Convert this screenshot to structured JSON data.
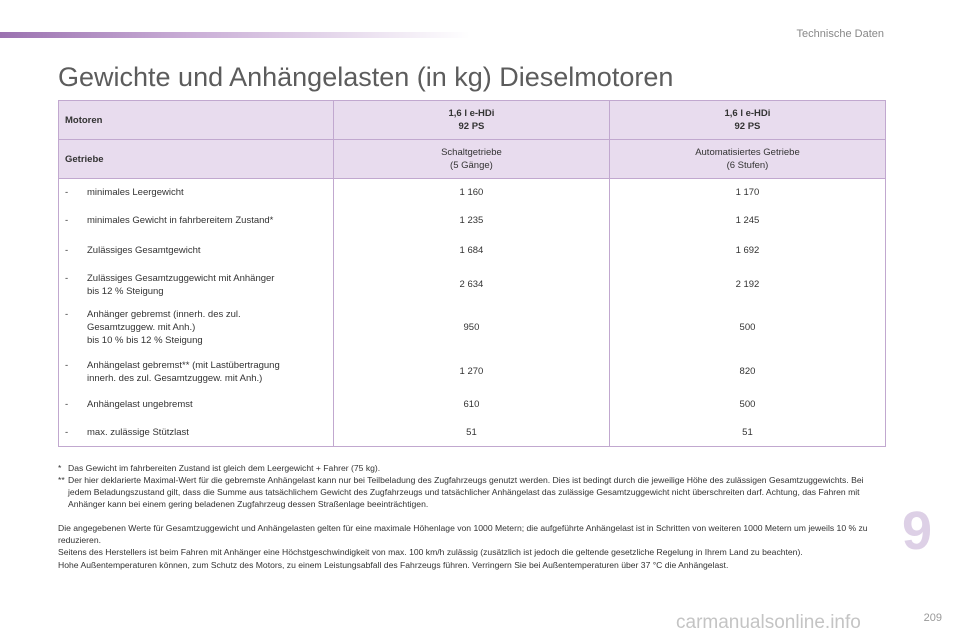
{
  "header": {
    "section": "Technische Daten"
  },
  "title": "Gewichte und Anhängelasten (in kg) Dieselmotoren",
  "table": {
    "motor_label": "Motoren",
    "gearbox_label": "Getriebe",
    "columns": [
      {
        "engine": "1,6 l e-HDi",
        "power": "92 PS",
        "gearbox": "Schaltgetriebe",
        "gears": "(5 Gänge)"
      },
      {
        "engine": "1,6 l e-HDi",
        "power": "92 PS",
        "gearbox": "Automatisiertes Getriebe",
        "gears": "(6 Stufen)"
      }
    ],
    "rows": [
      {
        "label": "minimales Leergewicht",
        "values": [
          "1 160",
          "1 170"
        ]
      },
      {
        "label": "minimales Gewicht in fahrbereitem Zustand*",
        "values": [
          "1 235",
          "1 245"
        ]
      },
      {
        "label": "Zulässiges Gesamtgewicht",
        "values": [
          "1 684",
          "1 692"
        ]
      },
      {
        "label": "Zulässiges Gesamtzuggewicht mit Anhänger\nbis 12 % Steigung",
        "values": [
          "2 634",
          "2 192"
        ]
      },
      {
        "label": "Anhänger gebremst (innerh. des zul.\nGesamtzuggew. mit Anh.)\nbis 10 % bis 12 % Steigung",
        "values": [
          "950",
          "500"
        ]
      },
      {
        "label": "Anhängelast gebremst** (mit Lastübertragung\ninnerh. des zul. Gesamtzuggew. mit Anh.)",
        "values": [
          "1 270",
          "820"
        ]
      },
      {
        "label": "Anhängelast ungebremst",
        "values": [
          "610",
          "500"
        ]
      },
      {
        "label": "max. zulässige Stützlast",
        "values": [
          "51",
          "51"
        ]
      }
    ]
  },
  "footnotes": [
    {
      "mark": "*",
      "text": "Das Gewicht im fahrbereiten Zustand ist gleich dem Leergewicht + Fahrer (75 kg)."
    },
    {
      "mark": "**",
      "text": "Der hier deklarierte Maximal-Wert für die gebremste Anhängelast kann nur bei Teilbeladung des Zugfahrzeugs genutzt werden. Dies ist bedingt durch die jeweilige Höhe des zulässigen Gesamtzuggewichts. Bei jedem Beladungszustand gilt, dass die Summe aus tatsächlichem Gewicht des Zugfahrzeugs und tatsächlicher Anhängelast das zulässige Gesamtzuggewicht nicht überschreiten darf. Achtung, das Fahren mit Anhänger kann bei einem gering beladenen Zugfahrzeug dessen Straßenlage beeinträchtigen."
    }
  ],
  "info": [
    "Die angegebenen Werte für Gesamtzuggewicht und Anhängelasten gelten für eine maximale Höhenlage von 1000 Metern; die aufgeführte Anhängelast ist in Schritten von weiteren 1000 Metern um jeweils 10 % zu reduzieren.",
    "Seitens des Herstellers ist beim Fahren mit Anhänger eine Höchstgeschwindigkeit von max. 100 km/h zulässig (zusätzlich ist jedoch die geltende gesetzliche Regelung in Ihrem Land zu beachten).",
    "Hohe Außentemperaturen können, zum Schutz des Motors, zu einem Leistungsabfall des Fahrzeugs führen. Verringern Sie bei Außentemperaturen über 37 °C die Anhängelast."
  ],
  "chapter_number": "9",
  "page_number": "209",
  "watermark": "carmanualsonline.info"
}
